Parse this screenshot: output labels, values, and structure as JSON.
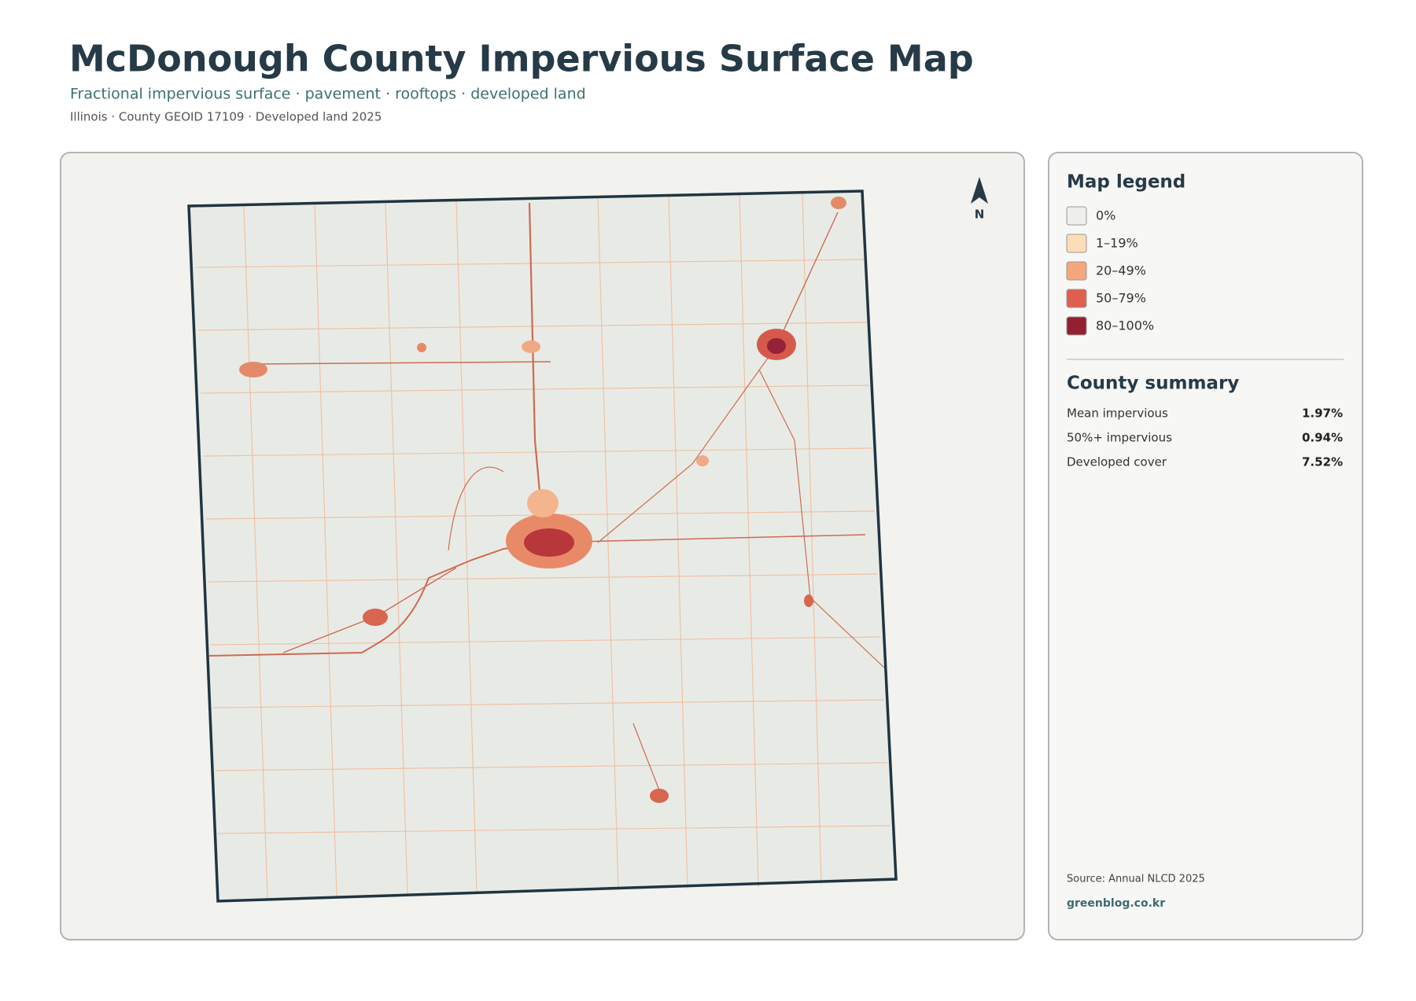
{
  "header": {
    "title": "McDonough County Impervious Surface Map",
    "subtitle": "Fractional impervious surface · pavement · rooftops · developed land",
    "meta": "Illinois · County GEOID 17109 · Developed land 2025"
  },
  "map": {
    "north": "N"
  },
  "legend": {
    "title": "Map legend",
    "items": [
      {
        "label": "0%",
        "color": "#eeeeec"
      },
      {
        "label": "1–19%",
        "color": "#fddcb8"
      },
      {
        "label": "20–49%",
        "color": "#f4a67c"
      },
      {
        "label": "50–79%",
        "color": "#df5f4f"
      },
      {
        "label": "80–100%",
        "color": "#931f33"
      }
    ]
  },
  "summary": {
    "title": "County summary",
    "rows": [
      {
        "label": "Mean impervious",
        "value": "1.97%"
      },
      {
        "label": "50%+ impervious",
        "value": "0.94%"
      },
      {
        "label": "Developed cover",
        "value": "7.52%"
      }
    ]
  },
  "footer": {
    "source": "Source: Annual NLCD 2025",
    "site": "greenblog.co.kr"
  }
}
